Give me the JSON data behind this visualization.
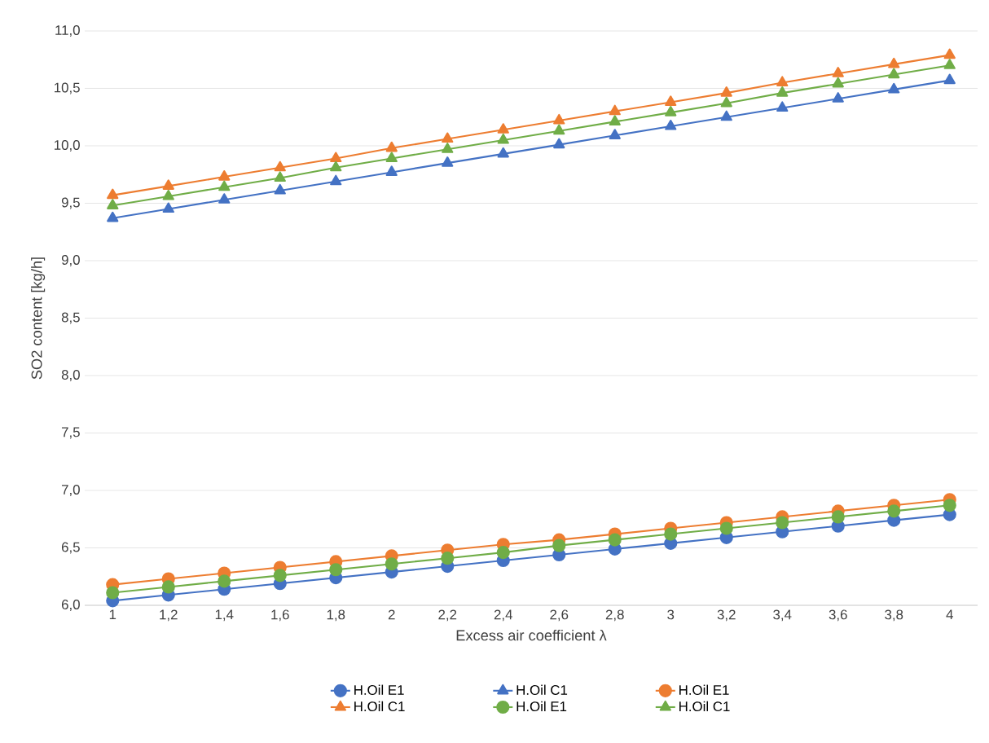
{
  "chart_data": {
    "type": "line",
    "xlabel": "Excess air coefficient λ",
    "ylabel": "SO2 content [kg/h]",
    "categories": [
      "1",
      "1,2",
      "1,4",
      "1,6",
      "1,8",
      "2",
      "2,2",
      "2,4",
      "2,6",
      "2,8",
      "3",
      "3,2",
      "3,4",
      "3,6",
      "3,8",
      "4"
    ],
    "series": [
      {
        "name": "H.Oil E1",
        "color": "#4472c4",
        "marker": "circle",
        "values": [
          6.04,
          6.09,
          6.14,
          6.19,
          6.24,
          6.29,
          6.34,
          6.39,
          6.44,
          6.49,
          6.54,
          6.59,
          6.64,
          6.69,
          6.74,
          6.79
        ]
      },
      {
        "name": "H.Oil C1",
        "color": "#4472c4",
        "marker": "triangle",
        "values": [
          9.37,
          9.45,
          9.53,
          9.61,
          9.69,
          9.77,
          9.85,
          9.93,
          10.01,
          10.09,
          10.17,
          10.25,
          10.33,
          10.41,
          10.49,
          10.57
        ]
      },
      {
        "name": "H.Oil E1",
        "color": "#ed7d31",
        "marker": "circle",
        "values": [
          6.18,
          6.23,
          6.28,
          6.33,
          6.38,
          6.43,
          6.48,
          6.53,
          6.57,
          6.62,
          6.67,
          6.72,
          6.77,
          6.82,
          6.87,
          6.92
        ]
      },
      {
        "name": "H.Oil C1",
        "color": "#ed7d31",
        "marker": "triangle",
        "values": [
          9.57,
          9.65,
          9.73,
          9.81,
          9.89,
          9.98,
          10.06,
          10.14,
          10.22,
          10.3,
          10.38,
          10.46,
          10.55,
          10.63,
          10.71,
          10.79
        ]
      },
      {
        "name": "H.Oil E1",
        "color": "#70ad47",
        "marker": "circle",
        "values": [
          6.11,
          6.16,
          6.21,
          6.26,
          6.31,
          6.36,
          6.41,
          6.46,
          6.52,
          6.57,
          6.62,
          6.67,
          6.72,
          6.77,
          6.82,
          6.87
        ]
      },
      {
        "name": "H.Oil C1",
        "color": "#70ad47",
        "marker": "triangle",
        "values": [
          9.48,
          9.56,
          9.64,
          9.72,
          9.81,
          9.89,
          9.97,
          10.05,
          10.13,
          10.21,
          10.29,
          10.37,
          10.46,
          10.54,
          10.62,
          10.7
        ]
      }
    ],
    "ylim": [
      6.0,
      11.0
    ],
    "yticks": [
      {
        "value": 6.0,
        "label": "6,0"
      },
      {
        "value": 6.5,
        "label": "6,5"
      },
      {
        "value": 7.0,
        "label": "7,0"
      },
      {
        "value": 7.5,
        "label": "7,5"
      },
      {
        "value": 8.0,
        "label": "8,0"
      },
      {
        "value": 8.5,
        "label": "8,5"
      },
      {
        "value": 9.0,
        "label": "9,0"
      },
      {
        "value": 9.5,
        "label": "9,5"
      },
      {
        "value": 10.0,
        "label": "10,0"
      },
      {
        "value": 10.5,
        "label": "10,5"
      },
      {
        "value": 11.0,
        "label": "11,0"
      }
    ],
    "grid": "y",
    "legend": "bottom",
    "line_style": "solid"
  }
}
